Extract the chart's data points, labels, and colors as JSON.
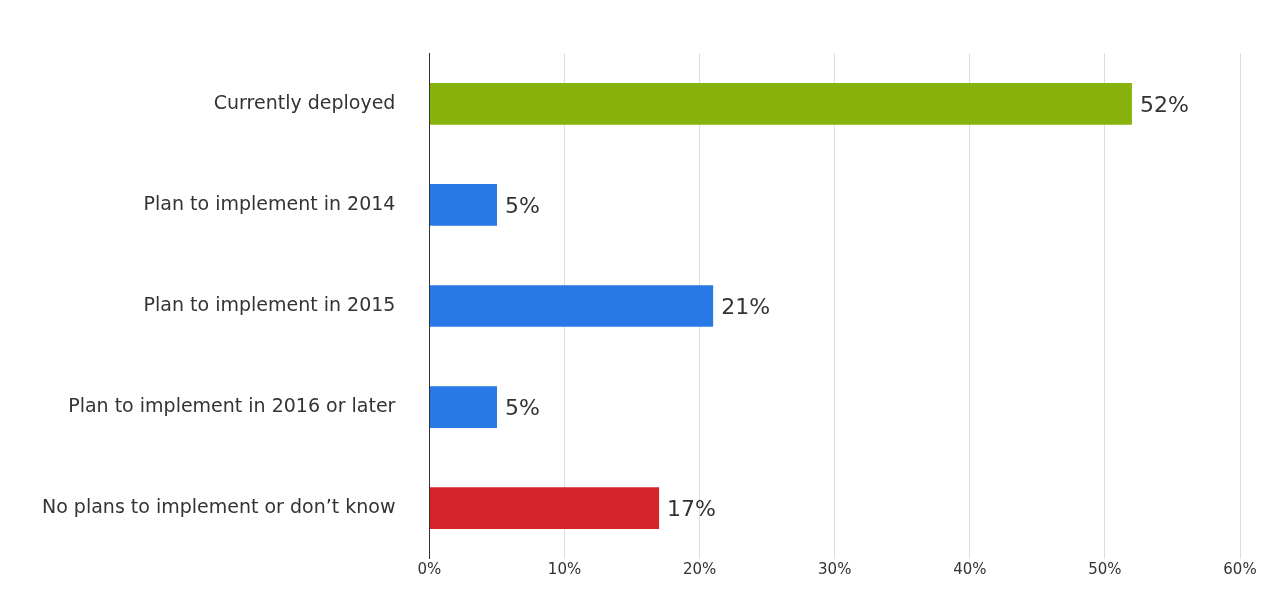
{
  "chart_data": {
    "type": "bar",
    "orientation": "horizontal",
    "categories": [
      "Currently deployed",
      "Plan to implement in 2014",
      "Plan to implement in 2015",
      "Plan to implement in 2016 or later",
      "No plans to implement or don’t know"
    ],
    "values": [
      52,
      5,
      21,
      5,
      17
    ],
    "colors": [
      "#86b20b",
      "#2878e6",
      "#2878e6",
      "#2878e6",
      "#d4242a"
    ],
    "xlim": [
      0,
      60
    ],
    "xticks": [
      {
        "value": 0,
        "label": "0%"
      },
      {
        "value": 10,
        "label": "10%"
      },
      {
        "value": 20,
        "label": "20%"
      },
      {
        "value": 30,
        "label": "30%"
      },
      {
        "value": 40,
        "label": "40%"
      },
      {
        "value": 50,
        "label": "50%"
      },
      {
        "value": 60,
        "label": "60%"
      }
    ],
    "value_labels": [
      "52%",
      "5%",
      "21%",
      "5%",
      "17%"
    ],
    "grid": "x"
  }
}
